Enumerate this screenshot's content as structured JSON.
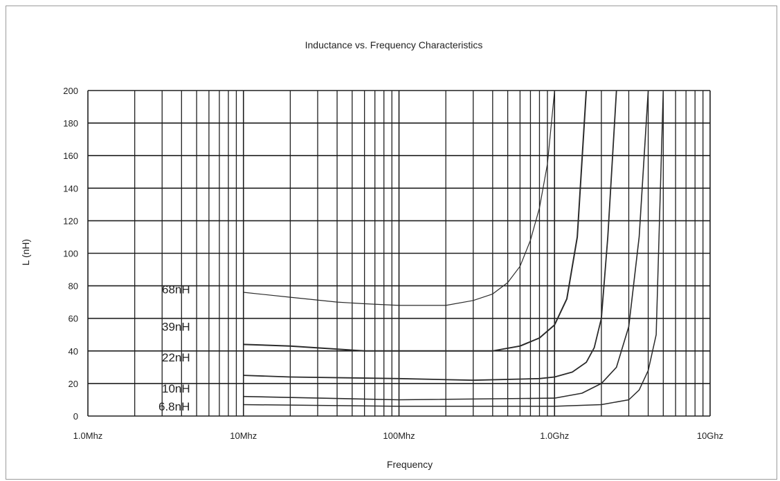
{
  "chart_data": {
    "type": "line",
    "title": "Inductance vs. Frequency Characteristics",
    "xlabel": "Frequency",
    "ylabel": "L (nH)",
    "x_scale": "log",
    "xlim": [
      1000000,
      10000000000
    ],
    "ylim": [
      0,
      200
    ],
    "grid": true,
    "x_ticks": [
      {
        "value": 1000000,
        "label": "1.0Mhz"
      },
      {
        "value": 10000000,
        "label": "10Mhz"
      },
      {
        "value": 100000000,
        "label": "100Mhz"
      },
      {
        "value": 1000000000,
        "label": "1.0Ghz"
      },
      {
        "value": 10000000000,
        "label": "10Ghz"
      }
    ],
    "y_ticks": [
      0,
      20,
      40,
      60,
      80,
      100,
      120,
      140,
      160,
      180,
      200
    ],
    "series": [
      {
        "name": "68nH",
        "x": [
          10000000,
          20000000,
          40000000,
          60000000,
          100000000,
          200000000,
          300000000,
          400000000,
          500000000,
          600000000,
          700000000,
          800000000,
          900000000,
          1000000000
        ],
        "y": [
          76,
          73,
          70,
          69,
          68,
          68,
          71,
          75,
          82,
          92,
          108,
          128,
          155,
          200
        ]
      },
      {
        "name": "39nH",
        "x": [
          10000000,
          20000000,
          60000000,
          400000000,
          600000000,
          800000000,
          1000000000,
          1200000000,
          1400000000,
          1600000000
        ],
        "y": [
          44,
          43,
          40,
          40,
          43,
          48,
          56,
          72,
          110,
          200
        ]
      },
      {
        "name": "22nH",
        "x": [
          10000000,
          20000000,
          100000000,
          300000000,
          800000000,
          1000000000,
          1300000000,
          1600000000,
          1800000000,
          2000000000,
          2200000000,
          2500000000
        ],
        "y": [
          25,
          24,
          23,
          22,
          23,
          24,
          27,
          33,
          42,
          60,
          110,
          200
        ]
      },
      {
        "name": "10nH",
        "x": [
          10000000,
          100000000,
          1000000000,
          1500000000,
          2000000000,
          2500000000,
          3000000000,
          3500000000,
          4000000000
        ],
        "y": [
          12,
          10,
          11,
          14,
          20,
          30,
          55,
          110,
          200
        ]
      },
      {
        "name": "6.8nH",
        "x": [
          10000000,
          100000000,
          1000000000,
          2000000000,
          3000000000,
          3500000000,
          4000000000,
          4500000000,
          5000000000
        ],
        "y": [
          7,
          6,
          6,
          7,
          10,
          16,
          28,
          50,
          200
        ]
      }
    ]
  }
}
